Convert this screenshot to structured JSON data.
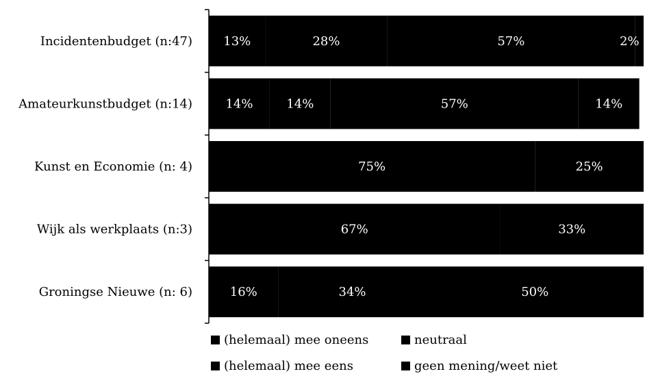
{
  "chart_data": {
    "type": "bar",
    "orientation": "horizontal",
    "stacked": true,
    "percent": true,
    "categories": [
      "Incidentenbudget (n:47)",
      "Amateurkunstbudget (n:14)",
      "Kunst  en Economie (n: 4)",
      "Wijk als werkplaats  (n:3)",
      "Groningse Nieuwe (n: 6)"
    ],
    "series": [
      {
        "name": "(helemaal) mee oneens",
        "values": [
          13,
          14,
          0,
          0,
          16
        ],
        "color": "#000000"
      },
      {
        "name": "neutraal",
        "values": [
          28,
          14,
          0,
          0,
          34
        ],
        "color": "#000000"
      },
      {
        "name": "(helemaal) mee eens",
        "values": [
          57,
          57,
          75,
          67,
          50
        ],
        "color": "#000000"
      },
      {
        "name": "geen mening/weet niet",
        "values": [
          2,
          14,
          25,
          33,
          0
        ],
        "color": "#000000"
      }
    ],
    "value_labels": [
      [
        "13%",
        "28%",
        "57%",
        "2%"
      ],
      [
        "14%",
        "14%",
        "57%",
        "14%"
      ],
      [
        "",
        "",
        "75%",
        "25%"
      ],
      [
        "",
        "",
        "67%",
        "33%"
      ],
      [
        "16%",
        "34%",
        "50%",
        ""
      ]
    ],
    "xlim": [
      0,
      100
    ],
    "grid": false,
    "legend_position": "bottom"
  }
}
